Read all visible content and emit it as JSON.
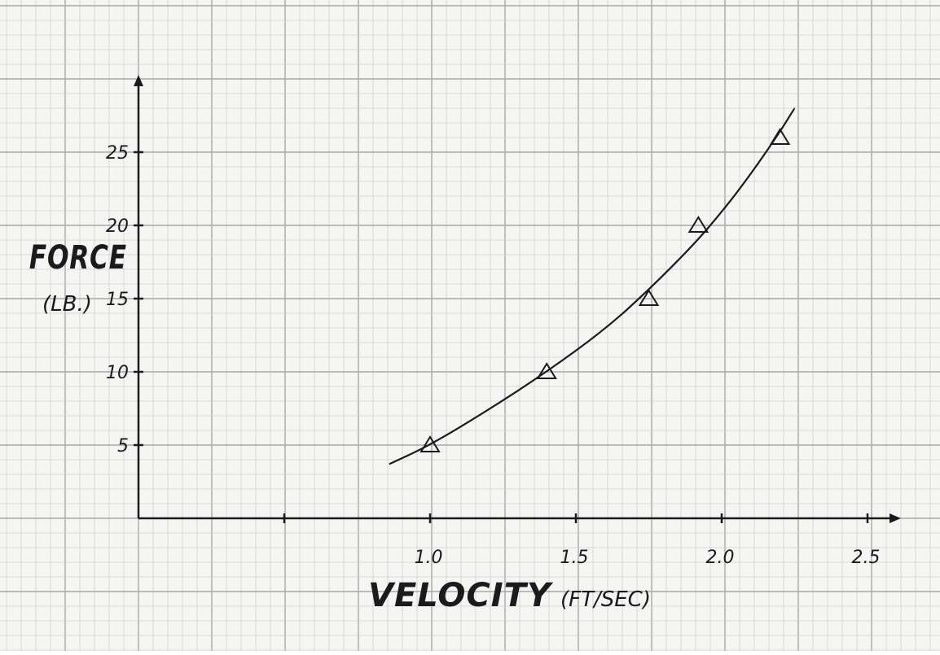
{
  "chart_data": {
    "type": "scatter",
    "xlabel": "VELOCITY",
    "xunit": "(FT/SEC)",
    "ylabel": "FORCE",
    "yunit": "(LB.)",
    "xlim": [
      0.0,
      2.6
    ],
    "ylim": [
      0,
      29
    ],
    "x_ticks": [
      "1.0",
      "1.5",
      "2.0",
      "2.5"
    ],
    "x_tick_values": [
      1.0,
      1.5,
      2.0,
      2.5
    ],
    "x_minor_ticks": [
      0.5
    ],
    "y_ticks": [
      "5",
      "10",
      "15",
      "20",
      "25"
    ],
    "y_tick_values": [
      5,
      10,
      15,
      20,
      25
    ],
    "grid": true,
    "marker": "triangle",
    "series": [
      {
        "points": [
          {
            "x": 1.0,
            "y": 5.0
          },
          {
            "x": 1.4,
            "y": 10.0
          },
          {
            "x": 1.75,
            "y": 15.0
          },
          {
            "x": 1.92,
            "y": 20.0
          },
          {
            "x": 2.2,
            "y": 26.0
          }
        ]
      }
    ],
    "fit_curve": {
      "x": [
        0.86,
        1.0,
        1.2,
        1.4,
        1.6,
        1.75,
        1.9,
        2.0,
        2.1,
        2.2,
        2.25
      ],
      "y": [
        3.7,
        5.0,
        7.4,
        10.0,
        12.9,
        15.6,
        18.6,
        20.9,
        23.5,
        26.4,
        28.0
      ]
    }
  }
}
